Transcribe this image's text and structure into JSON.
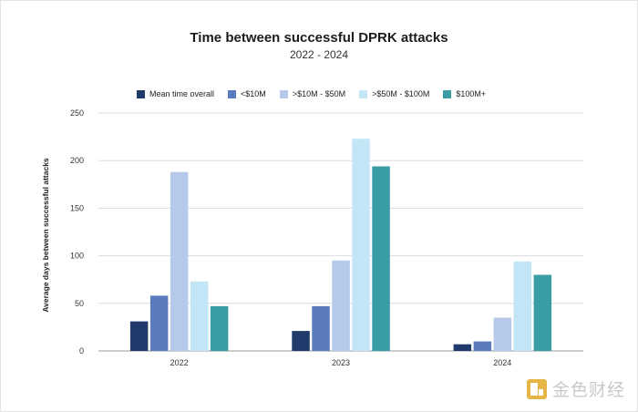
{
  "chart_data": {
    "type": "bar",
    "title": "Time between successful DPRK attacks",
    "subtitle": "2022 - 2024",
    "ylabel": "Average days between successful attacks",
    "xlabel": "",
    "ylim": [
      0,
      250
    ],
    "yticks": [
      "0",
      "50",
      "100",
      "150",
      "200",
      "250"
    ],
    "grid": true,
    "legend_position": "top",
    "categories": [
      "2022",
      "2023",
      "2024"
    ],
    "series": [
      {
        "name": "Mean time overall",
        "color": "#1f3a6b",
        "values": [
          31,
          21,
          7
        ]
      },
      {
        "name": "<$10M",
        "color": "#5b7bbf",
        "values": [
          58,
          47,
          10
        ]
      },
      {
        "name": ">$10M - $50M",
        "color": "#b6c9ea",
        "values": [
          188,
          95,
          35
        ]
      },
      {
        "name": ">$50M - $100M",
        "color": "#c3e6f6",
        "values": [
          73,
          223,
          94
        ]
      },
      {
        "name": "$100M+",
        "color": "#3a9da6",
        "values": [
          47,
          194,
          80
        ]
      }
    ]
  },
  "watermark": {
    "text": "金色财经",
    "icon": "jinse-logo-icon"
  }
}
